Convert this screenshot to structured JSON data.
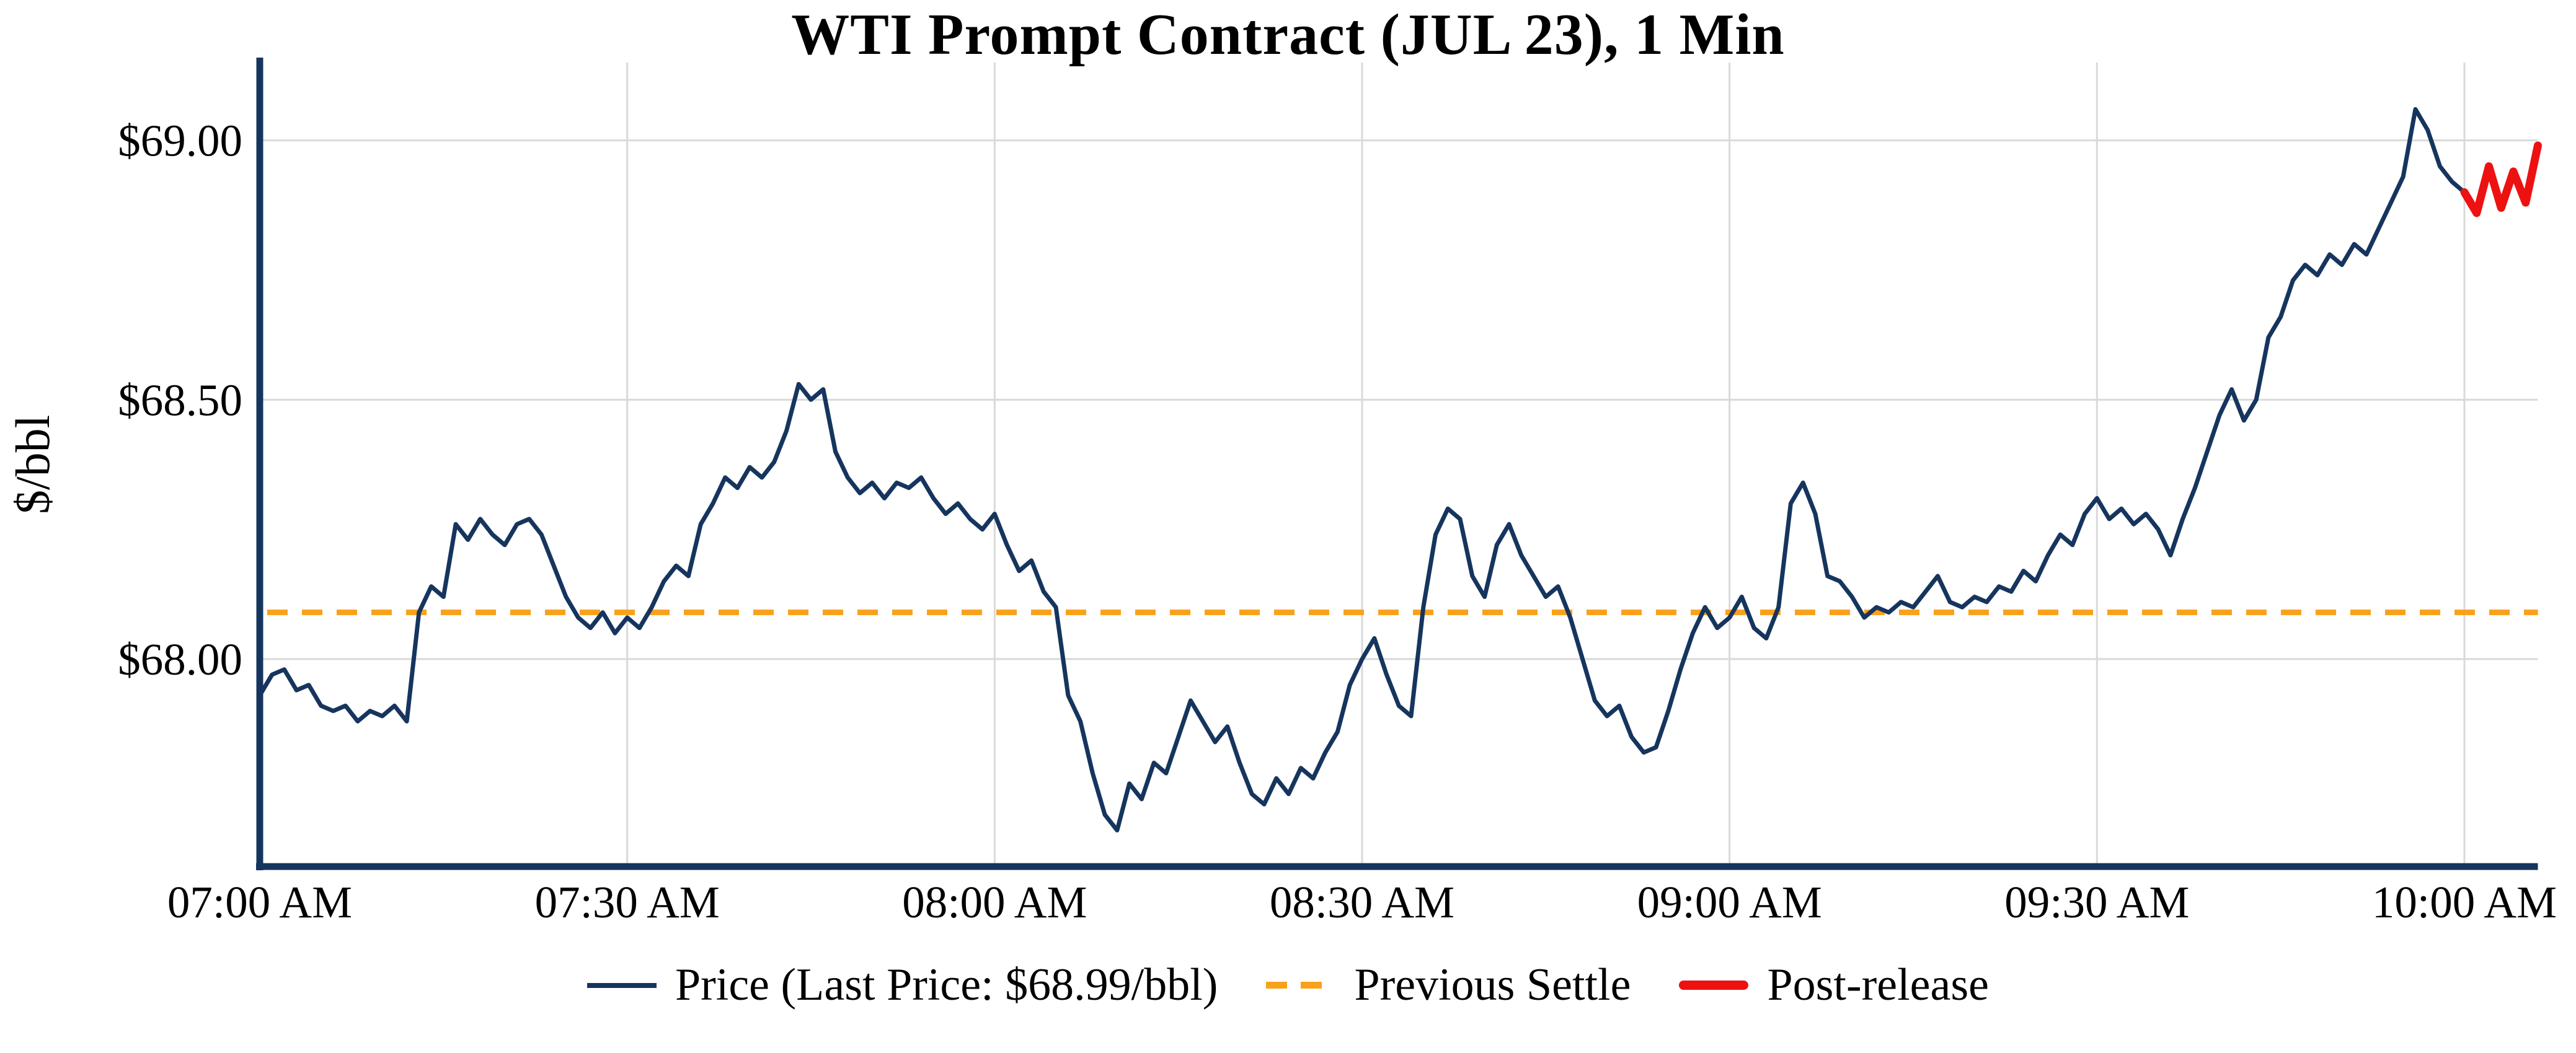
{
  "figure": {
    "title": "WTI Prompt Contract (JUL 23), 1 Min",
    "ylabel": "$/bbl"
  },
  "legend": {
    "price_label": "Price (Last Price: $68.99/bbl)",
    "settle_label": "Previous Settle",
    "post_label": "Post-release"
  },
  "colors": {
    "price": "#16355e",
    "settle": "#f9a11b",
    "post": "#ee1111",
    "grid": "#d9d9d9",
    "axis": "#16355e",
    "text": "#000000",
    "background": "#ffffff"
  },
  "chart_data": {
    "type": "line",
    "title": "WTI Prompt Contract (JUL 23), 1 Min",
    "xlabel": "",
    "ylabel": "$/bbl",
    "x_unit": "minutes_after_07:00_AM",
    "xlim": [
      0,
      186
    ],
    "ylim": [
      67.6,
      69.15
    ],
    "grid": true,
    "legend_position": "below",
    "last_price": 68.99,
    "previous_settle": 68.09,
    "x_ticks": [
      {
        "minute": 0,
        "label": "07:00 AM"
      },
      {
        "minute": 30,
        "label": "07:30 AM"
      },
      {
        "minute": 60,
        "label": "08:00 AM"
      },
      {
        "minute": 90,
        "label": "08:30 AM"
      },
      {
        "minute": 120,
        "label": "09:00 AM"
      },
      {
        "minute": 150,
        "label": "09:30 AM"
      },
      {
        "minute": 180,
        "label": "10:00 AM"
      }
    ],
    "y_ticks": [
      {
        "value": 68.0,
        "label": "$68.00"
      },
      {
        "value": 68.5,
        "label": "$68.50"
      },
      {
        "value": 69.0,
        "label": "$69.00"
      }
    ],
    "series": [
      {
        "name": "Price",
        "color_key": "price",
        "start_minute": 0,
        "values": [
          67.93,
          67.97,
          67.98,
          67.94,
          67.95,
          67.91,
          67.9,
          67.91,
          67.88,
          67.9,
          67.89,
          67.91,
          67.88,
          68.09,
          68.14,
          68.12,
          68.26,
          68.23,
          68.27,
          68.24,
          68.22,
          68.26,
          68.27,
          68.24,
          68.18,
          68.12,
          68.08,
          68.06,
          68.09,
          68.05,
          68.08,
          68.06,
          68.1,
          68.15,
          68.18,
          68.16,
          68.26,
          68.3,
          68.35,
          68.33,
          68.37,
          68.35,
          68.38,
          68.44,
          68.53,
          68.5,
          68.52,
          68.4,
          68.35,
          68.32,
          68.34,
          68.31,
          68.34,
          68.33,
          68.35,
          68.31,
          68.28,
          68.3,
          68.27,
          68.25,
          68.28,
          68.22,
          68.17,
          68.19,
          68.13,
          68.1,
          67.93,
          67.88,
          67.78,
          67.7,
          67.67,
          67.76,
          67.73,
          67.8,
          67.78,
          67.85,
          67.92,
          67.88,
          67.84,
          67.87,
          67.8,
          67.74,
          67.72,
          67.77,
          67.74,
          67.79,
          67.77,
          67.82,
          67.86,
          67.95,
          68.0,
          68.04,
          67.97,
          67.91,
          67.89,
          68.1,
          68.24,
          68.29,
          68.27,
          68.16,
          68.12,
          68.22,
          68.26,
          68.2,
          68.16,
          68.12,
          68.14,
          68.08,
          68.0,
          67.92,
          67.89,
          67.91,
          67.85,
          67.82,
          67.83,
          67.9,
          67.98,
          68.05,
          68.1,
          68.06,
          68.08,
          68.12,
          68.06,
          68.04,
          68.1,
          68.3,
          68.34,
          68.28,
          68.16,
          68.15,
          68.12,
          68.08,
          68.1,
          68.09,
          68.11,
          68.1,
          68.13,
          68.16,
          68.11,
          68.1,
          68.12,
          68.11,
          68.14,
          68.13,
          68.17,
          68.15,
          68.2,
          68.24,
          68.22,
          68.28,
          68.31,
          68.27,
          68.29,
          68.26,
          68.28,
          68.25,
          68.2,
          68.27,
          68.33,
          68.4,
          68.47,
          68.52,
          68.46,
          68.5,
          68.62,
          68.66,
          68.73,
          68.76,
          68.74,
          68.78,
          68.76,
          68.8,
          68.78,
          68.83,
          68.88,
          68.93,
          69.06,
          69.02,
          68.95,
          68.92,
          68.9
        ]
      },
      {
        "name": "Post-release",
        "color_key": "post",
        "start_minute": 180,
        "values": [
          68.9,
          68.86,
          68.95,
          68.87,
          68.94,
          68.88,
          68.99
        ]
      }
    ]
  }
}
